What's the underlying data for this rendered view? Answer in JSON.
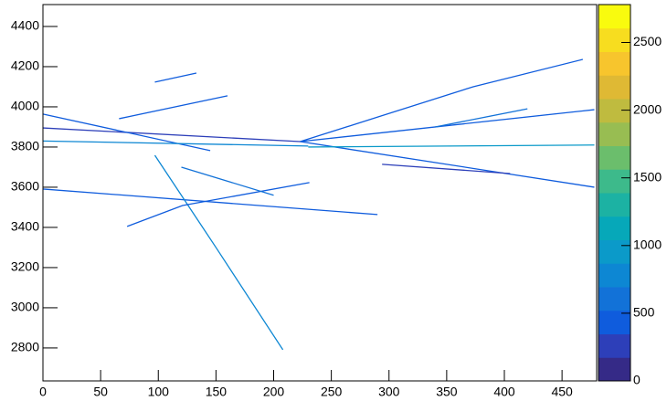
{
  "chart_data": {
    "type": "tracks",
    "xlim": [
      0,
      480
    ],
    "ylim": [
      2636,
      4509
    ],
    "zlim": [
      0,
      2780
    ],
    "xticks": [
      0,
      50,
      100,
      150,
      200,
      250,
      300,
      350,
      400,
      450
    ],
    "yticks": [
      2800,
      3000,
      3200,
      3400,
      3600,
      3800,
      4000,
      4200,
      4400
    ],
    "zticks": [
      0,
      500,
      1000,
      1500,
      2000,
      2500
    ],
    "palette": [
      "#352a87",
      "#2d3fb9",
      "#0f5cdd",
      "#1272d8",
      "#0d87d3",
      "#0b9ac9",
      "#06a8b9",
      "#1cb2a3",
      "#3dba8b",
      "#6bbe6c",
      "#98bd52",
      "#bfbb3f",
      "#dfb934",
      "#f7c52d",
      "#f7dd1f",
      "#f9fb0e"
    ],
    "tracks": [
      {
        "x": [
          0,
          223
        ],
        "y": [
          3895,
          3827
        ],
        "z": 300
      },
      {
        "x": [
          0,
          145
        ],
        "y": [
          3964,
          3782
        ],
        "z": 350
      },
      {
        "x": [
          0,
          290
        ],
        "y": [
          3591,
          3464
        ],
        "z": 400
      },
      {
        "x": [
          97,
          150,
          208
        ],
        "y": [
          3759,
          3300,
          2791
        ],
        "z": 700
      },
      {
        "x": [
          73,
          121,
          231
        ],
        "y": [
          3405,
          3509,
          3623
        ],
        "z": 500
      },
      {
        "x": [
          223,
          373,
          468
        ],
        "y": [
          3827,
          4100,
          4236
        ],
        "z": 450
      },
      {
        "x": [
          223,
          478
        ],
        "y": [
          3827,
          3986
        ],
        "z": 350
      },
      {
        "x": [
          223,
          478
        ],
        "y": [
          3827,
          3600
        ],
        "z": 400
      },
      {
        "x": [
          230,
          478
        ],
        "y": [
          3800,
          3810
        ],
        "z": 900
      },
      {
        "x": [
          294,
          405
        ],
        "y": [
          3714,
          3668
        ],
        "z": 300
      },
      {
        "x": [
          97,
          133
        ],
        "y": [
          4123,
          4168
        ],
        "z": 500
      },
      {
        "x": [
          66,
          160
        ],
        "y": [
          3941,
          4055
        ],
        "z": 450
      },
      {
        "x": [
          0,
          230
        ],
        "y": [
          3830,
          3805
        ],
        "z": 800
      },
      {
        "x": [
          120,
          200
        ],
        "y": [
          3700,
          3560
        ],
        "z": 600
      },
      {
        "x": [
          340,
          420
        ],
        "y": [
          3900,
          3990
        ],
        "z": 650
      }
    ]
  }
}
